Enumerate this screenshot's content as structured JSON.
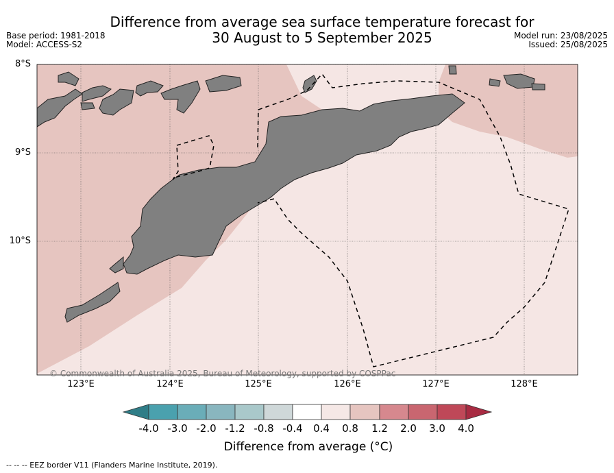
{
  "header": {
    "title_line1": "Difference from average sea surface temperature forecast for",
    "title_line2": "30 August to 5 September 2025",
    "base_period": "Base period: 1981-2018",
    "model": "Model: ACCESS-S2",
    "model_run": "Model run: 23/08/2025",
    "issued": "Issued: 25/08/2025"
  },
  "map": {
    "lat_labels": [
      "8°S",
      "9°S",
      "10°S"
    ],
    "lon_labels": [
      "123°E",
      "124°E",
      "125°E",
      "126°E",
      "127°E",
      "128°E"
    ],
    "copyright": "© Commonwealth of Australia 2025, Bureau of Meteorology, supported by COSPPac",
    "colors": {
      "anomaly_0_8_1_2": "#e6c5c0",
      "anomaly_0_4_0_8": "#f5e6e4",
      "land": "#808080"
    }
  },
  "colorbar": {
    "ticks": [
      "-4.0",
      "-3.0",
      "-2.0",
      "-1.2",
      "-0.8",
      "-0.4",
      "0.4",
      "0.8",
      "1.2",
      "2.0",
      "3.0",
      "4.0"
    ],
    "colors": [
      "#2f7d87",
      "#4aa1ae",
      "#6aadb8",
      "#89b6bf",
      "#a9c8ca",
      "#cfd8d9",
      "#ffffff",
      "#f5e8e6",
      "#e6c5c0",
      "#d6888e",
      "#c96670",
      "#bf4858",
      "#a82b42"
    ],
    "label": "Difference from average (°C)"
  },
  "legend_note": "-- -- -- EEZ border V11 (Flanders Marine Institute, 2019)."
}
